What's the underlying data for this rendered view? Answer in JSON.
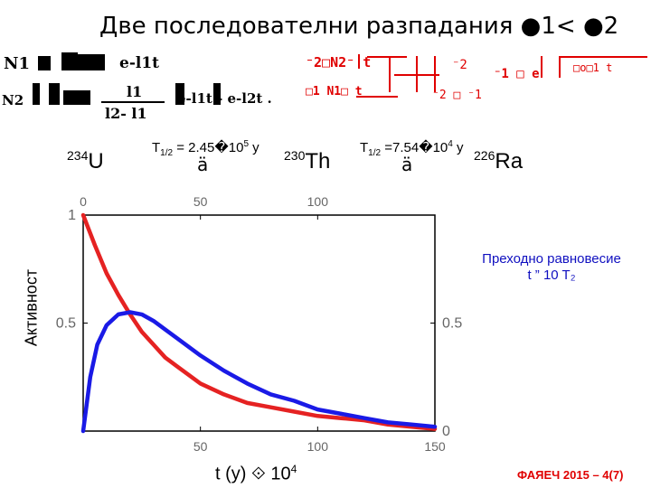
{
  "slide": {
    "title": "Две последователни разпадания ●1< ●2",
    "eq1_lhs": "N1",
    "eq1_rhs": "e-l1t",
    "eq2_lhs": "N2",
    "eq2_frac_num": "l1",
    "eq2_frac_den": "l2- l1",
    "eq2_rhs": "e-l1t - e-l2t .",
    "garbled_red_1": "⁻2□N2⁻ t",
    "garbled_red_2": "⁻2",
    "garbled_red_3": "⁻1 □ e",
    "garbled_red_4": "□o□1 t",
    "garbled_red_5": "□1 N1□ t",
    "garbled_red_6": "⁻2 □ ⁻1",
    "nuclide_1_mass": "234",
    "nuclide_1_sym": "U",
    "halflife_1": "T1/2 = 2.45�105 y",
    "halflife_1_label": "T",
    "halflife_1_sub": "1/2",
    "halflife_1_val": " = 2.45�10",
    "halflife_1_exp": "5",
    "halflife_1_unit": " y",
    "arrow_glyph": "ä",
    "nuclide_2_mass": "230",
    "nuclide_2_sym": "Th",
    "halflife_2_label": "T",
    "halflife_2_sub": "1/2",
    "halflife_2_val": " =7.54�10",
    "halflife_2_exp": "4",
    "halflife_2_unit": " y",
    "nuclide_3_mass": "226",
    "nuclide_3_sym": "Ra",
    "note_line1": "Преходно равновесие",
    "note_line2": "t ” 10 T₂",
    "footer": "ФАЯЕЧ 2015 – 4(7)"
  },
  "chart_data": {
    "type": "line",
    "xlabel": "t (y)  ⟐ 10⁴",
    "xlabel_main": "t (y) ",
    "xlabel_sym": "⟐",
    "xlabel_num": " 10",
    "xlabel_exp": "4",
    "ylabel": "Активност",
    "xlim": [
      0,
      150
    ],
    "ylim": [
      0,
      1
    ],
    "x_ticks": [
      50,
      100,
      150
    ],
    "x_tick_labels": [
      "50",
      "100",
      "150"
    ],
    "top_ticks": [
      0,
      50,
      100
    ],
    "top_tick_labels": [
      "0",
      "50",
      "100"
    ],
    "y_ticks_left": [
      0.5,
      1
    ],
    "y_tick_labels_left": [
      "0.5",
      "1"
    ],
    "y_ticks_right": [
      0,
      0.5
    ],
    "y_tick_labels_right": [
      "0",
      "0.5"
    ],
    "grid": false,
    "series": [
      {
        "color": "#e52222",
        "x": [
          0,
          5,
          10,
          15,
          20,
          25,
          30,
          35,
          40,
          50,
          60,
          70,
          80,
          90,
          100,
          110,
          120,
          130,
          140,
          150
        ],
        "y": [
          1.0,
          0.86,
          0.73,
          0.63,
          0.54,
          0.46,
          0.4,
          0.34,
          0.3,
          0.22,
          0.17,
          0.13,
          0.11,
          0.09,
          0.07,
          0.06,
          0.05,
          0.03,
          0.02,
          0.01
        ]
      },
      {
        "color": "#1a1ae6",
        "x": [
          0,
          3,
          6,
          10,
          15,
          20,
          25,
          30,
          35,
          40,
          50,
          60,
          70,
          80,
          90,
          100,
          110,
          120,
          130,
          140,
          150
        ],
        "y": [
          0.0,
          0.25,
          0.4,
          0.49,
          0.54,
          0.55,
          0.54,
          0.51,
          0.47,
          0.43,
          0.35,
          0.28,
          0.22,
          0.17,
          0.14,
          0.1,
          0.08,
          0.06,
          0.04,
          0.03,
          0.02
        ]
      }
    ]
  }
}
